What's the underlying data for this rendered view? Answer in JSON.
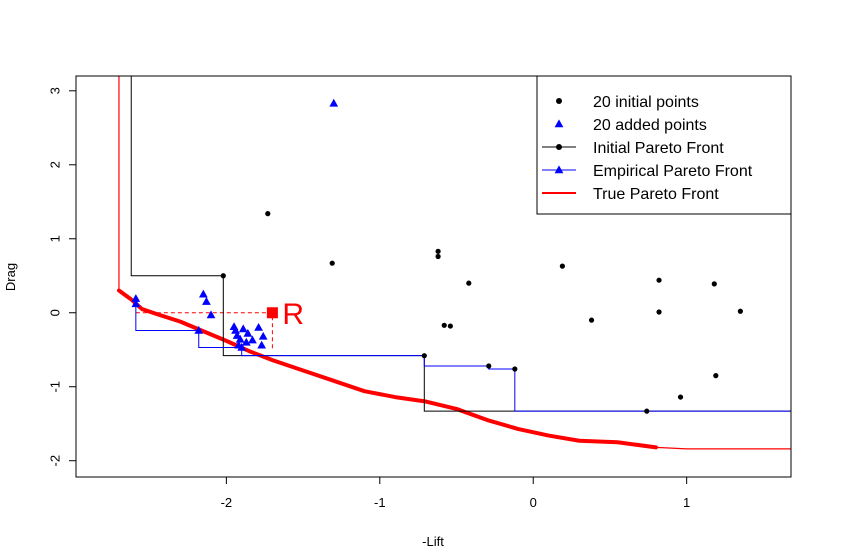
{
  "chart_data": {
    "type": "scatter",
    "xlabel": "-Lift",
    "ylabel": "Drag",
    "xlim": [
      -2.98,
      1.68
    ],
    "ylim": [
      -2.22,
      3.2
    ],
    "x_ticks": [
      -2,
      -1,
      0,
      1
    ],
    "x_tick_labels": [
      "-2",
      "-1",
      "0",
      "1"
    ],
    "y_ticks": [
      -2,
      -1,
      0,
      1,
      2,
      3
    ],
    "y_tick_labels": [
      "-2",
      "-1",
      "0",
      "1",
      "2",
      "3"
    ],
    "legend": {
      "position": "top-right",
      "entries": [
        "20 initial points",
        "20 added points",
        "Initial Pareto Front",
        "Empirical Pareto Front",
        "True Pareto Front"
      ]
    },
    "colors": {
      "initial": "#000000",
      "added": "#0000ff",
      "true_front": "#ff0000",
      "reference": "#ff0000"
    },
    "series": [
      {
        "name": "20 initial points",
        "marker": "circle",
        "points": [
          [
            -2.02,
            0.5
          ],
          [
            -1.73,
            1.34
          ],
          [
            -1.31,
            0.67
          ],
          [
            -0.71,
            -0.58
          ],
          [
            -0.62,
            0.83
          ],
          [
            -0.62,
            0.76
          ],
          [
            -0.58,
            -0.17
          ],
          [
            -0.54,
            -0.18
          ],
          [
            -0.42,
            0.4
          ],
          [
            -0.29,
            -0.72
          ],
          [
            -0.12,
            -0.76
          ],
          [
            0.19,
            0.63
          ],
          [
            0.38,
            -0.1
          ],
          [
            0.74,
            -1.33
          ],
          [
            0.82,
            0.44
          ],
          [
            0.82,
            0.01
          ],
          [
            0.96,
            -1.14
          ],
          [
            1.18,
            0.39
          ],
          [
            1.19,
            -0.85
          ],
          [
            1.35,
            0.02
          ]
        ]
      },
      {
        "name": "20 added points",
        "marker": "triangle",
        "points": [
          [
            -2.59,
            0.19
          ],
          [
            -2.59,
            0.12
          ],
          [
            -2.18,
            -0.24
          ],
          [
            -2.15,
            0.25
          ],
          [
            -2.13,
            0.15
          ],
          [
            -2.1,
            -0.03
          ],
          [
            -1.95,
            -0.19
          ],
          [
            -1.94,
            -0.24
          ],
          [
            -1.93,
            -0.31
          ],
          [
            -1.92,
            -0.44
          ],
          [
            -1.9,
            -0.47
          ],
          [
            -1.89,
            -0.22
          ],
          [
            -1.87,
            -0.4
          ],
          [
            -1.83,
            -0.37
          ],
          [
            -1.79,
            -0.2
          ],
          [
            -1.77,
            -0.44
          ],
          [
            -1.76,
            -0.32
          ],
          [
            -1.3,
            2.83
          ],
          [
            -1.91,
            -0.36
          ],
          [
            -1.86,
            -0.28
          ]
        ]
      },
      {
        "name": "Initial Pareto Front",
        "line_type": "step",
        "points": [
          [
            -2.62,
            3.2
          ],
          [
            -2.62,
            1.0
          ],
          [
            -2.02,
            0.5
          ],
          [
            -0.71,
            -0.58
          ],
          [
            0.74,
            -1.33
          ],
          [
            1.68,
            -1.33
          ]
        ]
      },
      {
        "name": "Empirical Pareto Front",
        "line_type": "step",
        "points": [
          [
            -2.59,
            0.12
          ],
          [
            -2.18,
            -0.24
          ],
          [
            -1.9,
            -0.47
          ],
          [
            -0.71,
            -0.58
          ],
          [
            -0.29,
            -0.72
          ],
          [
            -0.12,
            -0.76
          ],
          [
            0.74,
            -1.33
          ],
          [
            1.68,
            -1.33
          ]
        ]
      },
      {
        "name": "True Pareto Front",
        "line_type": "curve",
        "points": [
          [
            -2.7,
            3.2
          ],
          [
            -2.7,
            0.3
          ],
          [
            -2.62,
            0.18
          ],
          [
            -2.55,
            0.05
          ],
          [
            -2.45,
            -0.02
          ],
          [
            -2.3,
            -0.12
          ],
          [
            -2.15,
            -0.25
          ],
          [
            -2.0,
            -0.38
          ],
          [
            -1.85,
            -0.52
          ],
          [
            -1.7,
            -0.64
          ],
          [
            -1.5,
            -0.78
          ],
          [
            -1.3,
            -0.92
          ],
          [
            -1.1,
            -1.06
          ],
          [
            -0.9,
            -1.14
          ],
          [
            -0.7,
            -1.2
          ],
          [
            -0.5,
            -1.3
          ],
          [
            -0.3,
            -1.45
          ],
          [
            -0.1,
            -1.57
          ],
          [
            0.1,
            -1.66
          ],
          [
            0.3,
            -1.73
          ],
          [
            0.55,
            -1.75
          ],
          [
            0.8,
            -1.82
          ],
          [
            1.0,
            -1.84
          ],
          [
            1.68,
            -1.84
          ]
        ]
      }
    ],
    "reference_point": {
      "label": "R",
      "x": -1.7,
      "y": 0.0
    }
  }
}
